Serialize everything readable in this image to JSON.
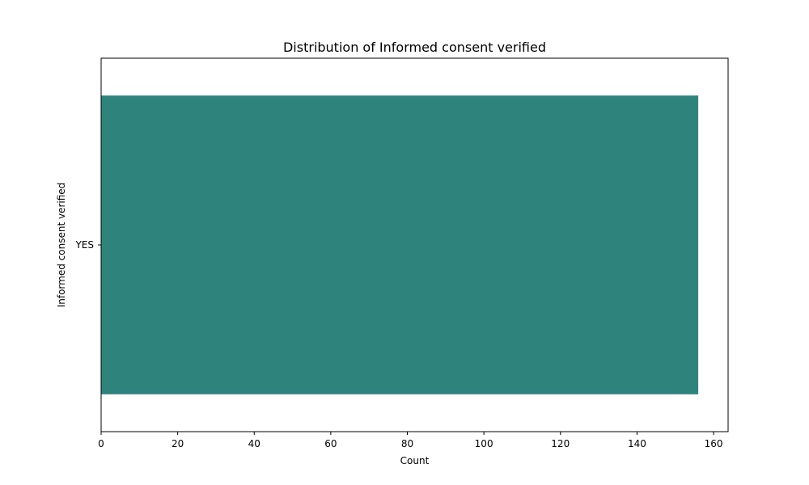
{
  "chart_data": {
    "type": "bar",
    "orientation": "horizontal",
    "title": "Distribution of Informed consent verified",
    "xlabel": "Count",
    "ylabel": "Informed consent verified",
    "categories": [
      "YES"
    ],
    "values": [
      156
    ],
    "xlim": [
      0,
      163.8
    ],
    "x_ticks": [
      0,
      20,
      40,
      60,
      80,
      100,
      120,
      140,
      160
    ],
    "grid": false,
    "bar_color": "#2e847d"
  }
}
